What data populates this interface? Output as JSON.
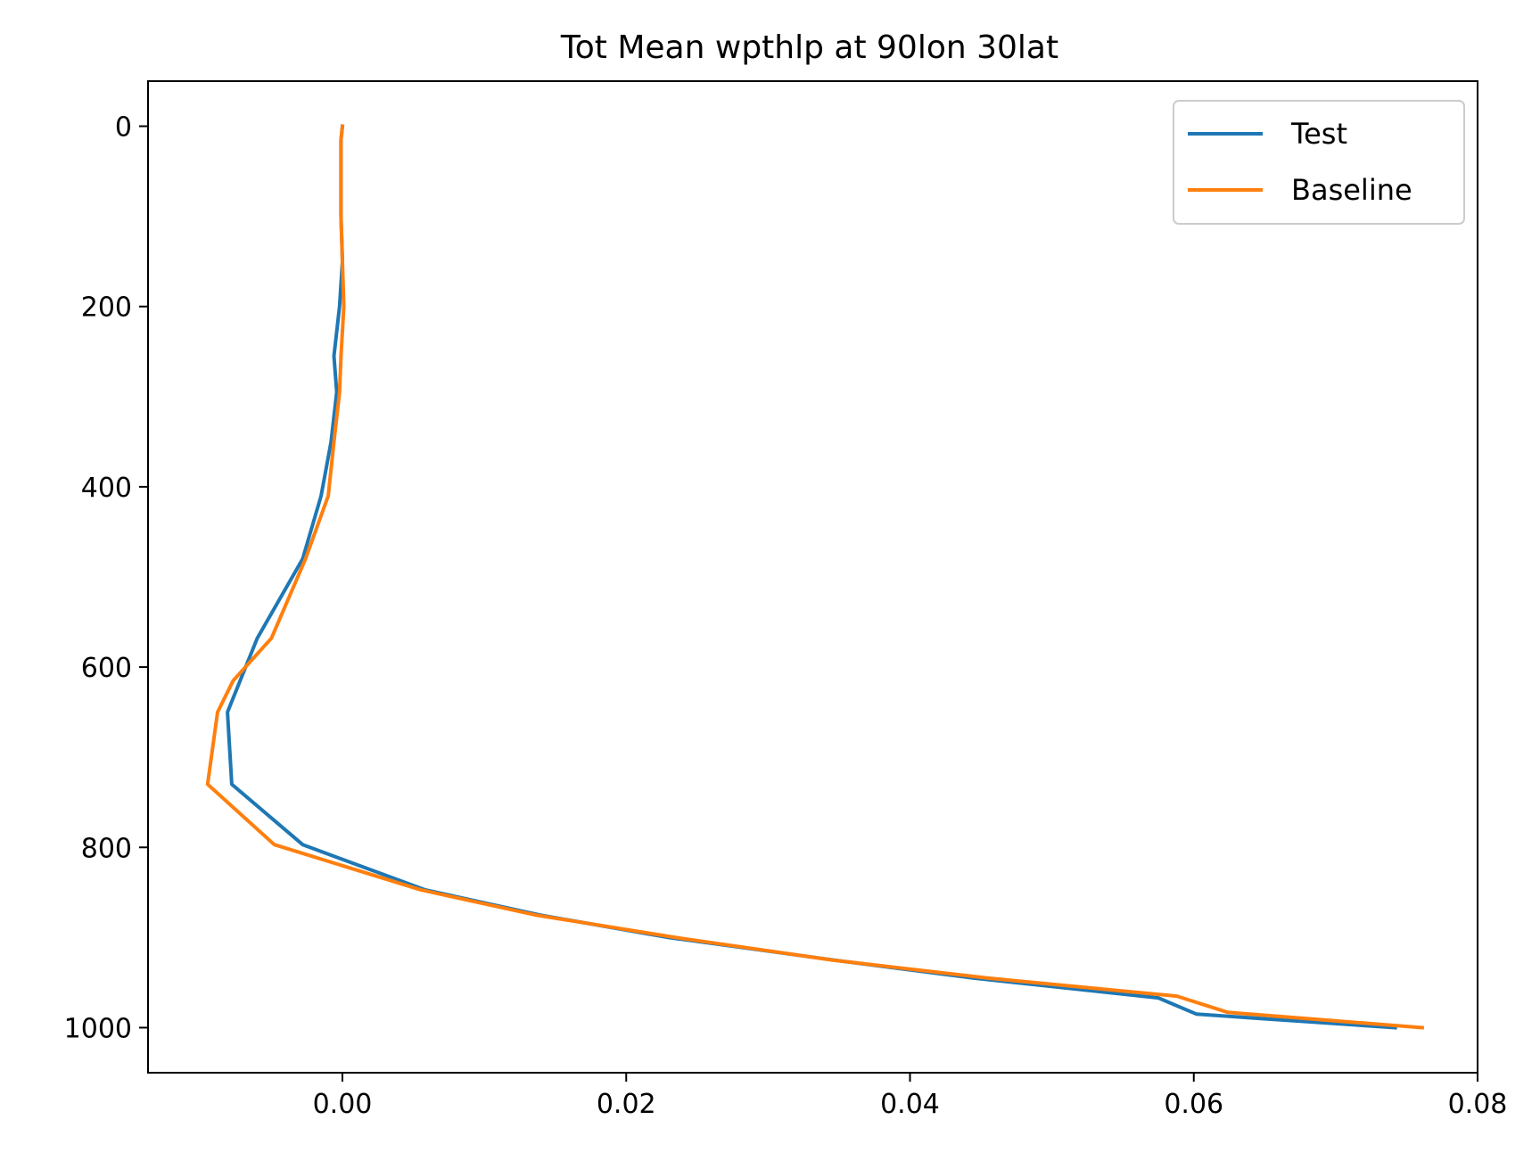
{
  "chart_data": {
    "type": "line",
    "title": "Tot Mean wpthlp at 90lon 30lat",
    "xlabel": "",
    "ylabel": "",
    "xlim": [
      -0.0137,
      0.08
    ],
    "ylim": [
      1050,
      -50
    ],
    "y_inverted": true,
    "grid": false,
    "legend_position": "upper-right",
    "xticks": [
      "0.00",
      "0.02",
      "0.04",
      "0.06",
      "0.08"
    ],
    "xtick_values": [
      0,
      0.02,
      0.04,
      0.06,
      0.08
    ],
    "yticks": [
      "0",
      "200",
      "400",
      "600",
      "800",
      "1000"
    ],
    "ytick_values": [
      0,
      200,
      400,
      600,
      800,
      1000
    ],
    "series": [
      {
        "name": "Test",
        "color": "#1f77b4",
        "x": [
          0.0,
          -0.0001,
          -0.0001,
          0.0,
          -0.0002,
          -0.0006,
          -0.0004,
          -0.0008,
          -0.0015,
          -0.0028,
          -0.006,
          -0.0081,
          -0.0078,
          -0.0028,
          0.0058,
          0.0139,
          0.023,
          0.0346,
          0.0445,
          0.0575,
          0.0602,
          0.0742
        ],
        "y": [
          0,
          15,
          100,
          150,
          200,
          255,
          295,
          350,
          410,
          480,
          568,
          650,
          730,
          797,
          847,
          875,
          900,
          925,
          945,
          967,
          985,
          1000
        ]
      },
      {
        "name": "Baseline",
        "color": "#ff7f0e",
        "x": [
          0.0,
          -0.0001,
          -0.0001,
          0.0,
          0.0001,
          -0.0001,
          -0.0002,
          -0.0006,
          -0.001,
          -0.0026,
          -0.005,
          -0.0077,
          -0.0088,
          -0.0095,
          -0.0048,
          0.0055,
          0.0136,
          0.0235,
          0.0345,
          0.0455,
          0.0588,
          0.0624,
          0.0761
        ],
        "y": [
          0,
          15,
          100,
          150,
          200,
          255,
          295,
          350,
          410,
          480,
          568,
          615,
          650,
          730,
          797,
          847,
          875,
          900,
          925,
          945,
          965,
          983,
          1000
        ]
      }
    ]
  }
}
